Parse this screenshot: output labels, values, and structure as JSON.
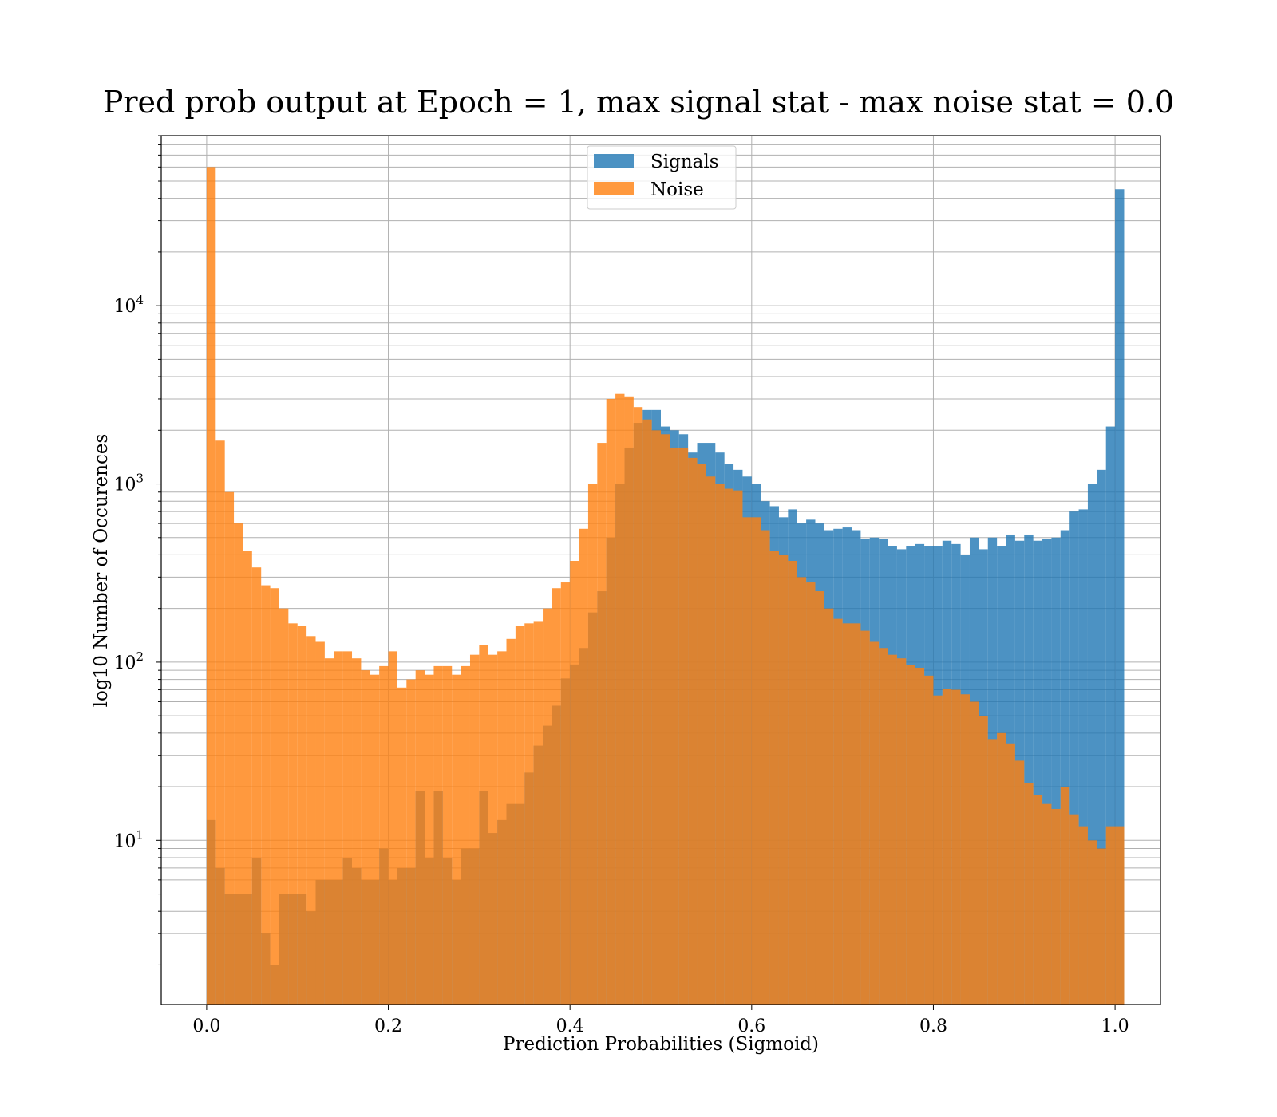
{
  "chart_data": {
    "type": "bar",
    "title": "Pred prob output at Epoch = 1, max signal stat - max noise stat = 0.0",
    "xlabel": "Prediction Probabilities (Sigmoid)",
    "ylabel": "log10 Number of Occurences",
    "y_scale": "log",
    "xlim": [
      -0.05,
      1.05
    ],
    "ylim": [
      1.2,
      90000
    ],
    "grid": true,
    "legend_position": "upper center",
    "bin_width": 0.01,
    "x_ticks": [
      {
        "value": 0.0,
        "label": "0.0"
      },
      {
        "value": 0.2,
        "label": "0.2"
      },
      {
        "value": 0.4,
        "label": "0.4"
      },
      {
        "value": 0.6,
        "label": "0.6"
      },
      {
        "value": 0.8,
        "label": "0.8"
      },
      {
        "value": 1.0,
        "label": "1.0"
      }
    ],
    "y_ticks": [
      {
        "value": 10,
        "base": "10",
        "exp": "1"
      },
      {
        "value": 100,
        "base": "10",
        "exp": "2"
      },
      {
        "value": 1000,
        "base": "10",
        "exp": "3"
      },
      {
        "value": 10000,
        "base": "10",
        "exp": "4"
      }
    ],
    "series": [
      {
        "name": "Signals",
        "color": "#1f77b4",
        "opacity": 0.8,
        "values": [
          13,
          7,
          5,
          5,
          5,
          8,
          3,
          2,
          5,
          5,
          5,
          4,
          6,
          6,
          6,
          8,
          7,
          6,
          6,
          9,
          6,
          7,
          7,
          19,
          8,
          19,
          8,
          6,
          9,
          9,
          19,
          11,
          13,
          16,
          16,
          24,
          34,
          44,
          57,
          81,
          97,
          120,
          190,
          250,
          500,
          1000,
          1600,
          2200,
          2600,
          2600,
          2100,
          2000,
          1900,
          1500,
          1700,
          1700,
          1500,
          1300,
          1200,
          1100,
          1000,
          800,
          750,
          650,
          720,
          600,
          630,
          600,
          550,
          560,
          570,
          550,
          490,
          500,
          490,
          450,
          430,
          450,
          460,
          450,
          450,
          480,
          460,
          400,
          500,
          430,
          500,
          450,
          520,
          480,
          520,
          480,
          490,
          500,
          550,
          700,
          720,
          1000,
          1200,
          2100,
          45000
        ]
      },
      {
        "name": "Noise",
        "color": "#ff7f0e",
        "opacity": 0.8,
        "values": [
          60000,
          1750,
          900,
          600,
          420,
          340,
          270,
          260,
          200,
          165,
          160,
          140,
          130,
          105,
          115,
          115,
          105,
          90,
          85,
          95,
          115,
          72,
          80,
          90,
          85,
          95,
          95,
          85,
          95,
          110,
          125,
          110,
          115,
          135,
          160,
          165,
          170,
          200,
          260,
          280,
          370,
          560,
          1000,
          1700,
          3000,
          3200,
          3100,
          2700,
          2300,
          2000,
          1900,
          1600,
          1600,
          1400,
          1300,
          1100,
          1000,
          940,
          920,
          650,
          650,
          550,
          420,
          400,
          370,
          300,
          280,
          250,
          200,
          175,
          165,
          165,
          150,
          130,
          120,
          110,
          105,
          96,
          93,
          84,
          65,
          71,
          70,
          66,
          60,
          50,
          37,
          40,
          35,
          28,
          21,
          18,
          16,
          15,
          20,
          14,
          12,
          10,
          9,
          12,
          12
        ]
      }
    ]
  }
}
